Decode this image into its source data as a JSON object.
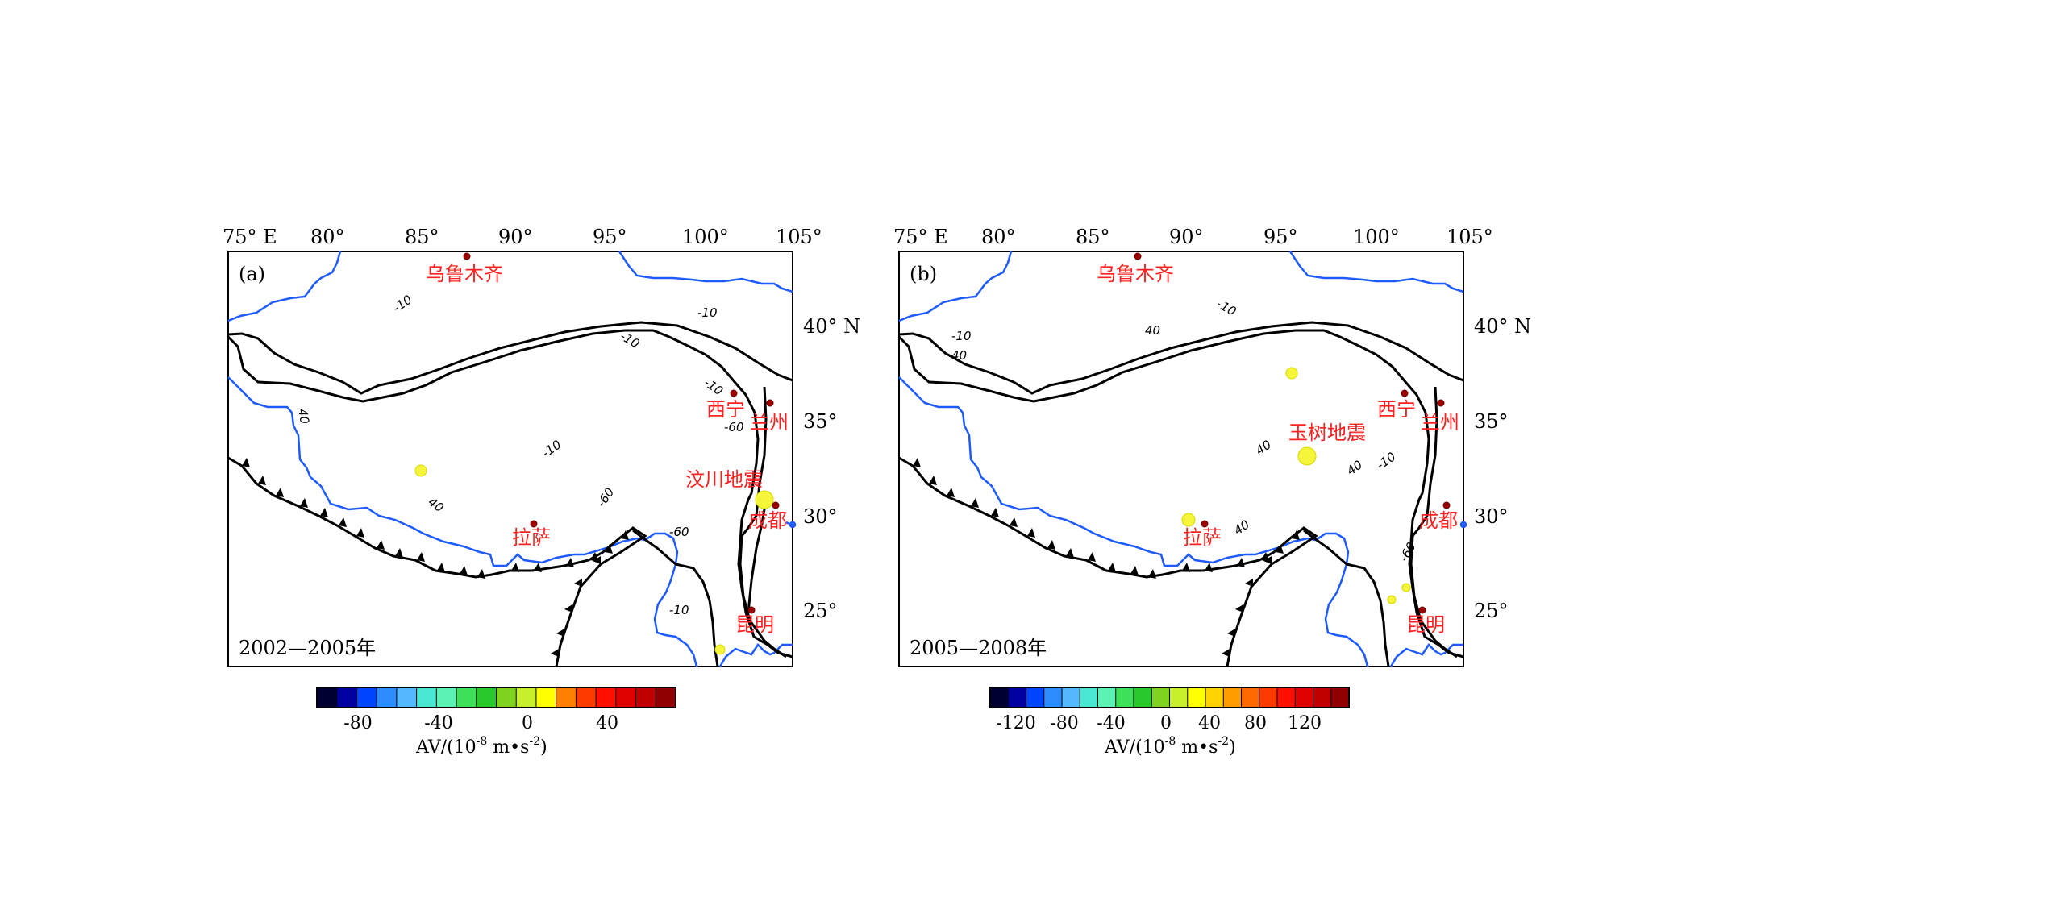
{
  "map_a": {
    "panel_label": "(a)",
    "period": "2002—2005年",
    "lon_labels": [
      "75° E",
      "80°",
      "85°",
      "90°",
      "95°",
      "100°",
      "105°"
    ],
    "lat_labels": [
      "40° N",
      "35°",
      "30°",
      "25°"
    ],
    "cities": [
      "乌鲁木齐",
      "西宁",
      "兰州",
      "拉萨",
      "成都",
      "昆明"
    ],
    "earthquake": "汶川地震",
    "contour_labels": [
      "-10",
      "-10",
      "-10",
      "-10",
      "-10",
      "-10",
      "40",
      "40",
      "-60",
      "-60",
      "-60"
    ],
    "colorbar": {
      "ticks": [
        "-80",
        "-40",
        "0",
        "40"
      ],
      "unit_prefix": "AV/(10",
      "unit_exp1": "-8",
      "unit_mid": " m•s",
      "unit_exp2": "-2",
      "unit_suffix": ")",
      "colors": [
        "#000033",
        "#0000a0",
        "#0044ff",
        "#2d8cff",
        "#55b7ff",
        "#49e6d2",
        "#5cf2b4",
        "#3ee05a",
        "#29c92d",
        "#80d220",
        "#c8ef2b",
        "#ffff00",
        "#ff7f00",
        "#ff3a00",
        "#ff1000",
        "#e00000",
        "#c00000",
        "#900000"
      ]
    }
  },
  "map_b": {
    "panel_label": "(b)",
    "period": "2005—2008年",
    "lon_labels": [
      "75° E",
      "80°",
      "85°",
      "90°",
      "95°",
      "100°",
      "105°"
    ],
    "lat_labels": [
      "40° N",
      "35°",
      "30°",
      "25°"
    ],
    "cities": [
      "乌鲁木齐",
      "西宁",
      "兰州",
      "拉萨",
      "成都",
      "昆明"
    ],
    "earthquake": "玉树地震",
    "contour_labels": [
      "-10",
      "-10",
      "-10",
      "40",
      "40",
      "40",
      "40",
      "40",
      "-60"
    ],
    "colorbar": {
      "ticks": [
        "-120",
        "-80",
        "-40",
        "0",
        "40",
        "80",
        "120"
      ],
      "unit_prefix": "AV/(10",
      "unit_exp1": "-8",
      "unit_mid": " m•s",
      "unit_exp2": "-2",
      "unit_suffix": ")",
      "colors": [
        "#000033",
        "#0000a0",
        "#0044ff",
        "#2d8cff",
        "#55b7ff",
        "#49e6d2",
        "#5cf2b4",
        "#3ee05a",
        "#29c92d",
        "#80d220",
        "#c8ef2b",
        "#ffff00",
        "#ffd400",
        "#ff9c00",
        "#ff6a00",
        "#ff3a00",
        "#ff1000",
        "#e00000",
        "#c00000",
        "#900000"
      ]
    }
  },
  "colors": {
    "fault": "#000000",
    "border": "#1e5bff",
    "city_text": "#ff2020",
    "city_dot": "#a00000",
    "anomaly": "#f5f53a"
  }
}
